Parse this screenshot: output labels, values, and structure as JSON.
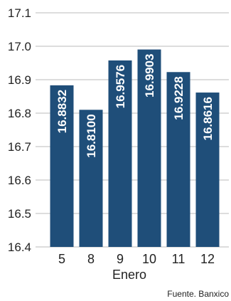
{
  "chart_data": {
    "type": "bar",
    "categories": [
      "5",
      "8",
      "9",
      "10",
      "11",
      "12"
    ],
    "values": [
      16.8832,
      16.81,
      16.9576,
      16.9903,
      16.9228,
      16.8616
    ],
    "value_labels": [
      "16.8832",
      "16.8100",
      "16.9576",
      "16.9903",
      "16.9228",
      "16.8616"
    ],
    "y_ticks": [
      "16.4",
      "16.5",
      "16.6",
      "16.7",
      "16.8",
      "16.9",
      "17.0",
      "17.1"
    ],
    "ylim": [
      16.4,
      17.1
    ],
    "xlabel": "Enero",
    "source": "Fuente. Banxico",
    "grid": true,
    "bar_color": "#1f4e79",
    "grid_color": "#bbbbbb"
  }
}
